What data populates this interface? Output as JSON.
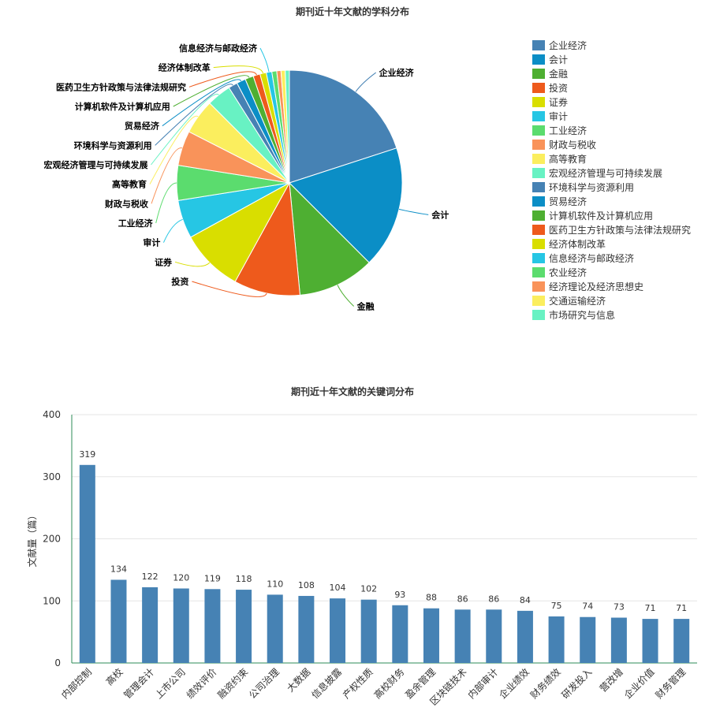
{
  "charts": {
    "pie_title": "期刊近十年文献的学科分布",
    "bar_title": "期刊近十年文献的关键词分布"
  },
  "chart_data": [
    {
      "type": "pie",
      "title": "期刊近十年文献的学科分布",
      "legend_position": "right",
      "slices": [
        {
          "label": "企业经济",
          "value": 20.0,
          "color": "#4682b4"
        },
        {
          "label": "会计",
          "value": 17.5,
          "color": "#0b8ec6"
        },
        {
          "label": "金融",
          "value": 11.0,
          "color": "#4eaf32"
        },
        {
          "label": "投资",
          "value": 9.5,
          "color": "#ee5a1c"
        },
        {
          "label": "证券",
          "value": 9.0,
          "color": "#d9de00"
        },
        {
          "label": "审计",
          "value": 5.5,
          "color": "#26c6e4"
        },
        {
          "label": "工业经济",
          "value": 5.0,
          "color": "#5bdc6e"
        },
        {
          "label": "财政与税收",
          "value": 5.0,
          "color": "#f9935a"
        },
        {
          "label": "高等教育",
          "value": 5.0,
          "color": "#fbee5e"
        },
        {
          "label": "宏观经济管理与可持续发展",
          "value": 3.5,
          "color": "#68f2c3"
        },
        {
          "label": "环境科学与资源利用",
          "value": 1.3,
          "color": "#4682b4"
        },
        {
          "label": "贸易经济",
          "value": 1.3,
          "color": "#0b8ec6"
        },
        {
          "label": "计算机软件及计算机应用",
          "value": 1.2,
          "color": "#4eaf32"
        },
        {
          "label": "医药卫生方针政策与法律法规研究",
          "value": 1.0,
          "color": "#ee5a1c"
        },
        {
          "label": "经济体制改革",
          "value": 0.9,
          "color": "#d9de00"
        },
        {
          "label": "信息经济与邮政经济",
          "value": 0.8,
          "color": "#26c6e4"
        },
        {
          "label": "农业经济",
          "value": 0.7,
          "color": "#5bdc6e"
        },
        {
          "label": "经济理论及经济思想史",
          "value": 0.6,
          "color": "#f9935a"
        },
        {
          "label": "交通运输经济",
          "value": 0.6,
          "color": "#fbee5e"
        },
        {
          "label": "市场研究与信息",
          "value": 0.6,
          "color": "#68f2c3"
        }
      ],
      "labeled_slices": [
        "企业经济",
        "会计",
        "金融",
        "投资",
        "证券",
        "审计",
        "工业经济",
        "财政与税收",
        "高等教育",
        "宏观经济管理与可持续发展",
        "环境科学与资源利用",
        "贸易经济",
        "计算机软件及计算机应用",
        "医药卫生方针政策与法律法规研究",
        "经济体制改革",
        "信息经济与邮政经济"
      ]
    },
    {
      "type": "bar",
      "title": "期刊近十年文献的关键词分布",
      "ylabel": "文献量（篇）",
      "ylim": [
        0,
        400
      ],
      "yticks": [
        0,
        100,
        200,
        300,
        400
      ],
      "grid": true,
      "color": "#4682b4",
      "categories": [
        "内部控制",
        "高校",
        "管理会计",
        "上市公司",
        "绩效评价",
        "融资约束",
        "公司治理",
        "大数据",
        "信息披露",
        "产权性质",
        "高校财务",
        "盈余管理",
        "区块链技术",
        "内部审计",
        "企业绩效",
        "财务绩效",
        "研发投入",
        "营改增",
        "企业价值",
        "财务管理"
      ],
      "values": [
        319,
        134,
        122,
        120,
        119,
        118,
        110,
        108,
        104,
        102,
        93,
        88,
        86,
        86,
        84,
        75,
        74,
        73,
        71,
        71
      ]
    }
  ]
}
